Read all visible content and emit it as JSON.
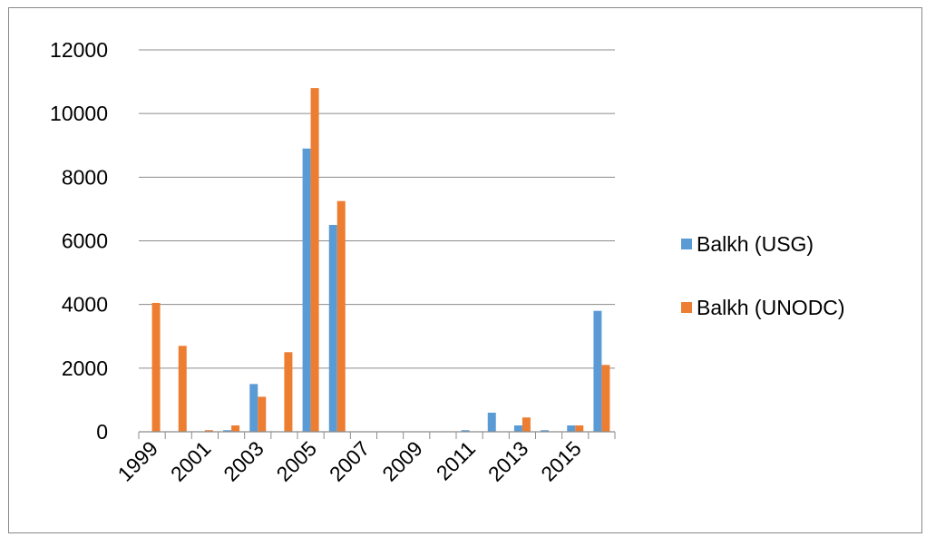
{
  "chart_data": {
    "type": "bar",
    "title": "",
    "xlabel": "",
    "ylabel": "",
    "ylim": [
      0,
      12000
    ],
    "y_ticks": [
      0,
      2000,
      4000,
      6000,
      8000,
      10000,
      12000
    ],
    "categories": [
      "1999",
      "2000",
      "2001",
      "2002",
      "2003",
      "2004",
      "2005",
      "2006",
      "2007",
      "2008",
      "2009",
      "2010",
      "2011",
      "2012",
      "2013",
      "2014",
      "2015",
      "2016"
    ],
    "x_tick_labels": [
      "1999",
      "",
      "2001",
      "",
      "2003",
      "",
      "2005",
      "",
      "2007",
      "",
      "2009",
      "",
      "2011",
      "",
      "2013",
      "",
      "2015",
      ""
    ],
    "grid": "horizontal",
    "legend_position": "right",
    "series": [
      {
        "name": "Balkh (USG)",
        "color": "#5B9BD5",
        "values": [
          0,
          0,
          0,
          50,
          1500,
          0,
          8900,
          6500,
          0,
          0,
          0,
          0,
          50,
          600,
          200,
          50,
          200,
          3800
        ]
      },
      {
        "name": "Balkh (UNODC)",
        "color": "#ED7D31",
        "values": [
          4050,
          2700,
          50,
          200,
          1100,
          2500,
          10800,
          7250,
          0,
          0,
          0,
          0,
          0,
          0,
          450,
          0,
          200,
          2100
        ]
      }
    ]
  }
}
